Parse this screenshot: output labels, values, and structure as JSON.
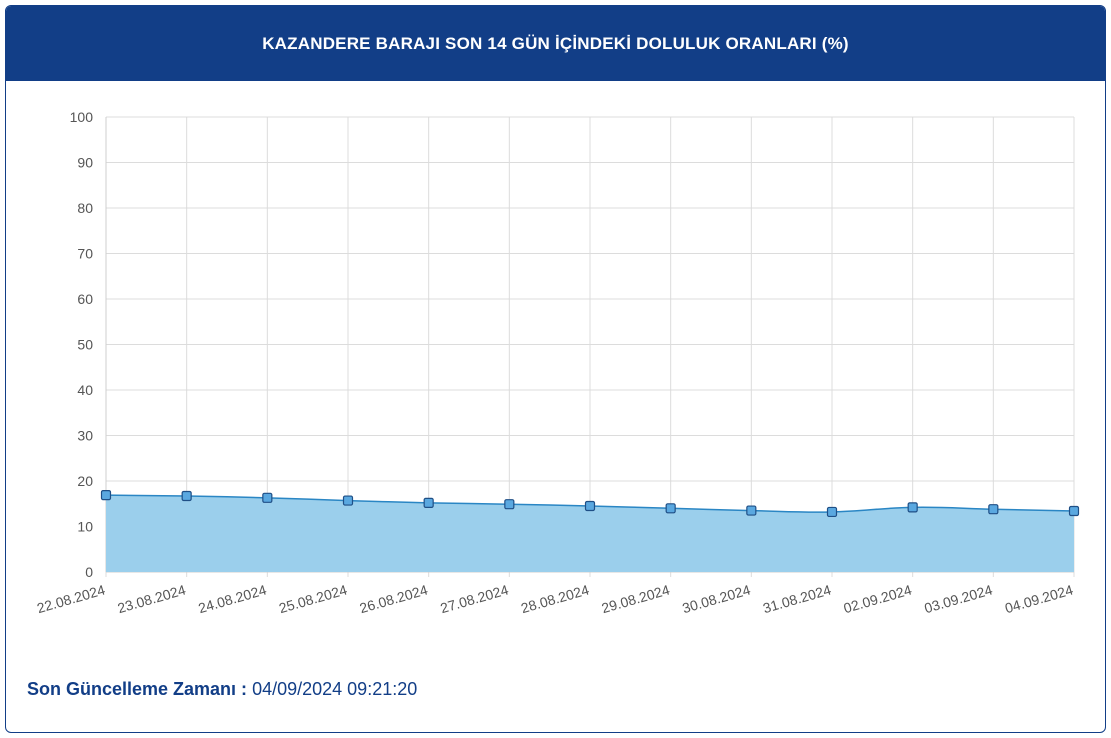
{
  "header": {
    "title": "KAZANDERE BARAJI SON 14 GÜN İÇİNDEKİ DOLULUK ORANLARI (%)"
  },
  "footer": {
    "label": "Son Güncelleme Zamanı :",
    "value": "04/09/2024 09:21:20"
  },
  "colors": {
    "header_bg": "#123e87",
    "line": "#2a86c4",
    "fill": "#9bcfec",
    "marker_fill": "#5aa8e0",
    "marker_stroke": "#1f4f86",
    "grid": "#dcdcdc"
  },
  "chart_data": {
    "type": "area",
    "categories": [
      "22.08.2024",
      "23.08.2024",
      "24.08.2024",
      "25.08.2024",
      "26.08.2024",
      "27.08.2024",
      "28.08.2024",
      "29.08.2024",
      "30.08.2024",
      "31.08.2024",
      "02.09.2024",
      "03.09.2024",
      "04.09.2024"
    ],
    "series": [
      {
        "values": [
          16.9,
          16.7,
          16.3,
          15.7,
          15.2,
          14.9,
          14.5,
          14.0,
          13.5,
          13.2,
          14.2,
          13.8,
          13.4
        ]
      }
    ],
    "ylim": [
      0,
      100
    ],
    "yticks": [
      0,
      10,
      20,
      30,
      40,
      50,
      60,
      70,
      80,
      90,
      100
    ],
    "grid": true,
    "legend": "none"
  }
}
